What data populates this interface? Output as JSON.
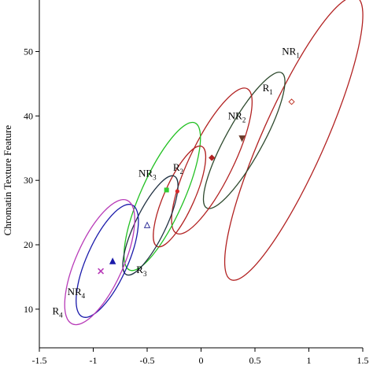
{
  "chart_data": {
    "type": "scatter",
    "title": "",
    "xlabel": "",
    "ylabel": "Chromatin Texture Feature",
    "xlim": [
      -1.5,
      1.5
    ],
    "ylim": [
      4,
      58
    ],
    "x_ticks": [
      -1.5,
      -1,
      -0.5,
      0,
      0.5,
      1,
      1.5
    ],
    "x_tick_labels": [
      "-1.5",
      "-1",
      "-0.5",
      "0",
      "0.5",
      "1",
      "1.5"
    ],
    "y_ticks": [
      10,
      20,
      30,
      40,
      50
    ],
    "y_tick_labels": [
      "10",
      "20",
      "30",
      "40",
      "50"
    ],
    "grid": false,
    "groups": [
      {
        "label": "NR",
        "sub": "1",
        "color": "#b22222",
        "ellipse": {
          "center": [
            0.86,
            36.5
          ],
          "rx": 0.29,
          "ry": 24.0,
          "rotate_deg": 24
        },
        "mean": [
          0.84,
          42.2
        ],
        "marker": "diamond-open",
        "marker_color": "#c0392b",
        "label_at": [
          0.75,
          49.5
        ]
      },
      {
        "label": "R",
        "sub": "1",
        "color": "#2e4a2e",
        "ellipse": {
          "center": [
            0.4,
            36.2
          ],
          "rx": 0.17,
          "ry": 12.0,
          "rotate_deg": 29
        },
        "mean": [
          0.38,
          36.5
        ],
        "marker": "triangle-down",
        "marker_color": "#6b3a2a",
        "label_at": [
          0.57,
          43.8
        ]
      },
      {
        "label": "NR",
        "sub": "2",
        "color": "#b22222",
        "ellipse": {
          "center": [
            0.1,
            33.0
          ],
          "rx": 0.2,
          "ry": 12.5,
          "rotate_deg": 26
        },
        "mean": [
          0.1,
          33.5
        ],
        "marker": "diamond",
        "marker_color": "#b22222",
        "label_at": [
          0.25,
          39.5
        ]
      },
      {
        "label": "NR",
        "sub": "3",
        "color": "#22c022",
        "ellipse": {
          "center": [
            -0.36,
            27.5
          ],
          "rx": 0.2,
          "ry": 12.5,
          "rotate_deg": 24
        },
        "mean": [
          -0.32,
          28.5
        ],
        "marker": "square",
        "marker_color": "#33cc33",
        "label_at": [
          -0.58,
          30.6
        ]
      },
      {
        "label": "R",
        "sub": "2",
        "color": "#b22222",
        "ellipse": {
          "center": [
            -0.2,
            27.5
          ],
          "rx": 0.14,
          "ry": 8.5,
          "rotate_deg": 24
        },
        "mean": [
          -0.22,
          28.3
        ],
        "marker": "circle",
        "marker_color": "#d62728",
        "label_at": [
          -0.26,
          31.5
        ]
      },
      {
        "label": "R",
        "sub": "3",
        "color": "#223344",
        "ellipse": {
          "center": [
            -0.47,
            23.0
          ],
          "rx": 0.14,
          "ry": 8.5,
          "rotate_deg": 26
        },
        "mean": [
          -0.5,
          23.0
        ],
        "marker": "triangle-open",
        "marker_color": "#333399",
        "label_at": [
          -0.6,
          15.6
        ]
      },
      {
        "label": "NR",
        "sub": "4",
        "color": "#1a1aaa",
        "ellipse": {
          "center": [
            -0.87,
            17.5
          ],
          "rx": 0.19,
          "ry": 9.5,
          "rotate_deg": 24
        },
        "mean": [
          -0.82,
          17.4
        ],
        "marker": "triangle",
        "marker_color": "#1a1aaa",
        "label_at": [
          -1.24,
          12.2
        ]
      },
      {
        "label": "R",
        "sub": "4",
        "color": "#b83bb8",
        "ellipse": {
          "center": [
            -0.94,
            17.3
          ],
          "rx": 0.22,
          "ry": 10.5,
          "rotate_deg": 24
        },
        "mean": [
          -0.93,
          15.9
        ],
        "marker": "x",
        "marker_color": "#b83bb8",
        "label_at": [
          -1.38,
          9.2
        ]
      }
    ]
  }
}
